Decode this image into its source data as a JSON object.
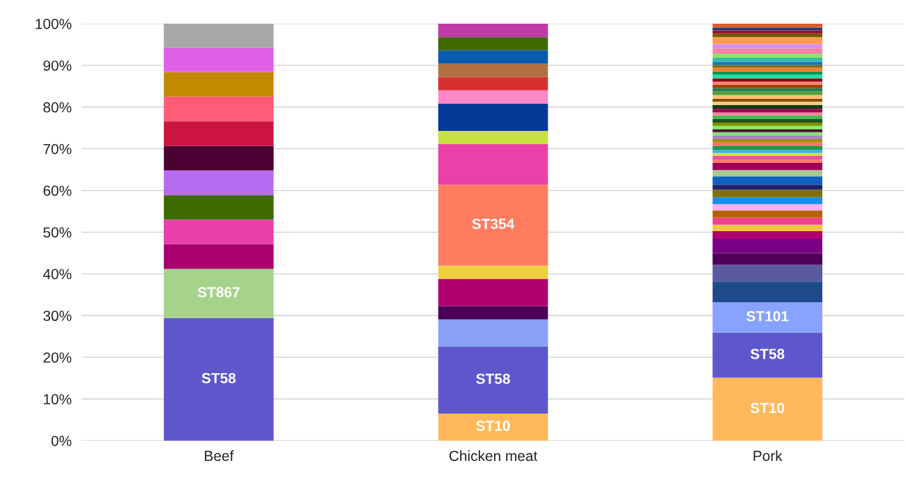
{
  "chart_data": {
    "type": "bar",
    "stacked": true,
    "categories": [
      "Beef",
      "Chicken meat",
      "Pork"
    ],
    "ylim": [
      0,
      100
    ],
    "yticks": [
      {
        "value": 0,
        "label": "0%"
      },
      {
        "value": 10,
        "label": "10%"
      },
      {
        "value": 20,
        "label": "20%"
      },
      {
        "value": 30,
        "label": "30%"
      },
      {
        "value": 40,
        "label": "40%"
      },
      {
        "value": 50,
        "label": "50%"
      },
      {
        "value": 60,
        "label": "60%"
      },
      {
        "value": 70,
        "label": "70%"
      },
      {
        "value": 80,
        "label": "80%"
      },
      {
        "value": 90,
        "label": "90%"
      },
      {
        "value": 100,
        "label": "100%"
      }
    ],
    "grid": "y",
    "series": [
      {
        "name": "ST10",
        "color": "#ffb95a",
        "values": [
          null,
          6.5,
          15.1
        ]
      },
      {
        "name": "ST58",
        "color": "#5e57cc",
        "values": [
          29.4,
          16.1,
          10.8
        ]
      },
      {
        "name": "ST867",
        "color": "#a6d38a",
        "values": [
          11.8,
          null,
          null
        ]
      },
      {
        "name": "ST101",
        "color": "#88a2ff",
        "values": [
          null,
          null,
          7.3
        ]
      },
      {
        "color": "#a8006e",
        "values": [
          5.9,
          null,
          null
        ]
      },
      {
        "color": "#e83fa8",
        "values": [
          5.9,
          null,
          null
        ]
      },
      {
        "color": "#3d6b00",
        "values": [
          5.9,
          null,
          null
        ]
      },
      {
        "color": "#b66cf0",
        "values": [
          5.9,
          null,
          null
        ]
      },
      {
        "color": "#4b0032",
        "values": [
          5.9,
          null,
          null
        ]
      },
      {
        "color": "#cc1440",
        "values": [
          5.9,
          null,
          null
        ]
      },
      {
        "color": "#ff5c78",
        "values": [
          5.9,
          null,
          null
        ]
      },
      {
        "color": "#c28a00",
        "values": [
          5.9,
          null,
          null
        ]
      },
      {
        "color": "#e060e8",
        "values": [
          5.8,
          null,
          null
        ]
      },
      {
        "color": "#a8a8a8",
        "values": [
          5.8,
          null,
          null
        ]
      },
      {
        "color": "#8aa0f8",
        "values": [
          null,
          6.5,
          null
        ]
      },
      {
        "color": "#4a0058",
        "values": [
          null,
          3.2,
          null
        ]
      },
      {
        "color": "#b0006e",
        "values": [
          null,
          6.5,
          null
        ]
      },
      {
        "color": "#f0d040",
        "values": [
          null,
          3.2,
          null
        ]
      },
      {
        "name": "ST354",
        "color": "#ff7c60",
        "values": [
          null,
          19.4,
          null
        ]
      },
      {
        "color": "#ea40a8",
        "values": [
          null,
          9.7,
          null
        ]
      },
      {
        "color": "#c8e040",
        "values": [
          null,
          3.2,
          null
        ]
      },
      {
        "color": "#063a98",
        "values": [
          null,
          6.5,
          null
        ]
      },
      {
        "color": "#ff88c8",
        "values": [
          null,
          3.2,
          null
        ]
      },
      {
        "color": "#d83030",
        "values": [
          null,
          3.2,
          null
        ]
      },
      {
        "color": "#b07040",
        "values": [
          null,
          3.2,
          null
        ]
      },
      {
        "color": "#0a5cb0",
        "values": [
          null,
          3.2,
          null
        ]
      },
      {
        "color": "#3d6b00",
        "values": [
          null,
          3.2,
          null
        ]
      },
      {
        "color": "#c03aa8",
        "values": [
          null,
          3.2,
          null
        ]
      },
      {
        "color": "#1f4a8a",
        "values": [
          null,
          null,
          5.0
        ]
      },
      {
        "color": "#5a5aa0",
        "values": [
          null,
          null,
          4.0
        ]
      },
      {
        "color": "#50005a",
        "values": [
          null,
          null,
          2.8
        ]
      },
      {
        "color": "#7a0088",
        "values": [
          null,
          null,
          3.4
        ]
      },
      {
        "color": "#b0006e",
        "values": [
          null,
          null,
          1.9
        ]
      },
      {
        "color": "#f0c840",
        "values": [
          null,
          null,
          1.5
        ]
      },
      {
        "color": "#f04090",
        "values": [
          null,
          null,
          1.7
        ]
      },
      {
        "color": "#b86000",
        "values": [
          null,
          null,
          1.7
        ]
      },
      {
        "color": "#f8b0f0",
        "values": [
          null,
          null,
          1.5
        ]
      },
      {
        "color": "#1090f0",
        "values": [
          null,
          null,
          1.7
        ]
      },
      {
        "color": "#807000",
        "values": [
          null,
          null,
          1.8
        ]
      },
      {
        "color": "#202070",
        "values": [
          null,
          null,
          1.2
        ]
      },
      {
        "color": "#1060c0",
        "values": [
          null,
          null,
          2.0
        ]
      },
      {
        "color": "#a8c890",
        "values": [
          null,
          null,
          1.5
        ]
      },
      {
        "color": "#a0005a",
        "values": [
          null,
          null,
          1.7
        ]
      },
      {
        "color": "#ff7a6a",
        "values": [
          null,
          null,
          0.8
        ]
      },
      {
        "color": "#f04ca0",
        "values": [
          null,
          null,
          0.9
        ]
      },
      {
        "color": "#d0e040",
        "values": [
          null,
          null,
          0.7
        ]
      },
      {
        "color": "#40b0f0",
        "values": [
          null,
          null,
          0.8
        ]
      },
      {
        "color": "#10a040",
        "values": [
          null,
          null,
          0.8
        ]
      },
      {
        "color": "#ff7070",
        "values": [
          null,
          null,
          0.9
        ]
      },
      {
        "color": "#a09000",
        "values": [
          null,
          null,
          0.8
        ]
      },
      {
        "color": "#b080c0",
        "values": [
          null,
          null,
          0.8
        ]
      },
      {
        "color": "#80e080",
        "values": [
          null,
          null,
          0.9
        ]
      },
      {
        "color": "#500030",
        "values": [
          null,
          null,
          0.7
        ]
      },
      {
        "color": "#80f060",
        "values": [
          null,
          null,
          0.8
        ]
      },
      {
        "color": "#809000",
        "values": [
          null,
          null,
          0.8
        ]
      },
      {
        "color": "#205020",
        "values": [
          null,
          null,
          0.9
        ]
      },
      {
        "color": "#40c050",
        "values": [
          null,
          null,
          0.8
        ]
      },
      {
        "color": "#ff80a0",
        "values": [
          null,
          null,
          0.7
        ]
      },
      {
        "color": "#a00050",
        "values": [
          null,
          null,
          0.9
        ]
      },
      {
        "color": "#003a10",
        "values": [
          null,
          null,
          0.9
        ]
      },
      {
        "color": "#f0d080",
        "values": [
          null,
          null,
          0.8
        ]
      },
      {
        "color": "#8a4a00",
        "values": [
          null,
          null,
          0.7
        ]
      },
      {
        "color": "#ffc070",
        "values": [
          null,
          null,
          0.9
        ]
      },
      {
        "color": "#50a030",
        "values": [
          null,
          null,
          0.8
        ]
      },
      {
        "color": "#208050",
        "values": [
          null,
          null,
          0.8
        ]
      },
      {
        "color": "#a04000",
        "values": [
          null,
          null,
          0.9
        ]
      },
      {
        "color": "#ff8070",
        "values": [
          null,
          null,
          0.7
        ]
      },
      {
        "color": "#900010",
        "values": [
          null,
          null,
          0.8
        ]
      },
      {
        "color": "#20e0a0",
        "values": [
          null,
          null,
          0.9
        ]
      },
      {
        "color": "#109050",
        "values": [
          null,
          null,
          0.7
        ]
      },
      {
        "color": "#ff7a30",
        "values": [
          null,
          null,
          0.9
        ]
      },
      {
        "color": "#807000",
        "values": [
          null,
          null,
          0.7
        ]
      },
      {
        "color": "#1a70d0",
        "values": [
          null,
          null,
          0.8
        ]
      },
      {
        "color": "#30c0a0",
        "values": [
          null,
          null,
          0.9
        ]
      },
      {
        "color": "#90e070",
        "values": [
          null,
          null,
          1.0
        ]
      },
      {
        "color": "#ff80a8",
        "values": [
          null,
          null,
          1.3
        ]
      },
      {
        "color": "#d890f0",
        "values": [
          null,
          null,
          1.0
        ]
      },
      {
        "color": "#ff9a50",
        "values": [
          null,
          null,
          1.7
        ]
      },
      {
        "color": "#6b5a00",
        "values": [
          null,
          null,
          0.8
        ]
      },
      {
        "color": "#a0102a",
        "values": [
          null,
          null,
          0.8
        ]
      },
      {
        "color": "#1a3a7a",
        "values": [
          null,
          null,
          0.7
        ]
      },
      {
        "color": "#e05a2a",
        "values": [
          null,
          null,
          0.9
        ]
      }
    ]
  }
}
